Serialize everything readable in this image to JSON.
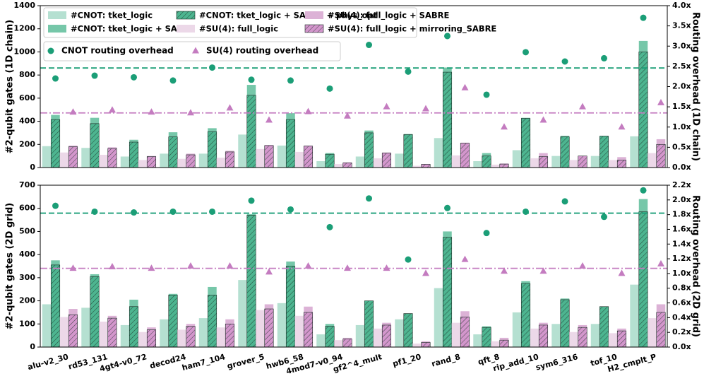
{
  "chart_data": [
    {
      "type": "bar",
      "ylabel": "#2-qubit gates (1D chain)",
      "y2label": "Routing overhead (1D chain)",
      "ylim": [
        0,
        1400
      ],
      "yticks": [
        0,
        200,
        400,
        600,
        800,
        1000,
        1200,
        1400
      ],
      "y2lim": [
        0,
        4
      ],
      "y2ticks": [
        {
          "value": 0,
          "label": "0.0x"
        },
        {
          "value": 0.5,
          "label": "0.5x"
        },
        {
          "value": 1,
          "label": "1.0x"
        },
        {
          "value": 1.5,
          "label": "1.5x"
        },
        {
          "value": 2,
          "label": "2.0x"
        },
        {
          "value": 2.5,
          "label": "2.5x"
        },
        {
          "value": 3,
          "label": "3.0x"
        },
        {
          "value": 3.5,
          "label": "3.5x"
        },
        {
          "value": 4,
          "label": "4.0x"
        }
      ],
      "legend": "upper left",
      "series": [
        {
          "name": "#CNOT: tket_logic",
          "color": "#b5e0d1",
          "values": [
            185,
            170,
            95,
            120,
            120,
            285,
            190,
            55,
            95,
            120,
            255,
            55,
            150,
            100,
            100,
            270
          ]
        },
        {
          "name": "#CNOT: tket_logic + SABRE",
          "color": "#76c7a9",
          "values": [
            455,
            430,
            240,
            305,
            340,
            715,
            470,
            125,
            320,
            290,
            865,
            125,
            430,
            275,
            275,
            1095
          ]
        },
        {
          "name": "#CNOT: tket_logic + SABRE + phys_opt",
          "color": "#4db590",
          "hatch": true,
          "values": [
            415,
            380,
            220,
            265,
            310,
            625,
            415,
            115,
            300,
            285,
            825,
            100,
            425,
            265,
            270,
            1000
          ]
        },
        {
          "name": "#SU(4): full_logic",
          "color": "#ecd8e8",
          "values": [
            130,
            110,
            65,
            75,
            85,
            160,
            135,
            30,
            80,
            15,
            105,
            25,
            80,
            65,
            65,
            125
          ]
        },
        {
          "name": "#SU(4): full_logic + SABRE",
          "color": "#dcb2d6",
          "values": [
            190,
            175,
            100,
            120,
            145,
            195,
            190,
            45,
            130,
            30,
            215,
            35,
            125,
            100,
            90,
            245
          ]
        },
        {
          "name": "#SU(4): full_logic + mirroring_SABRE",
          "color": "#d396cc",
          "hatch": true,
          "values": [
            180,
            165,
            95,
            110,
            135,
            190,
            185,
            40,
            125,
            28,
            210,
            30,
            95,
            100,
            65,
            200
          ]
        },
        {
          "type": "scatter",
          "axis": "y2",
          "marker": "circle",
          "name": "CNOT routing overhead",
          "color": "#1b9e77",
          "values": [
            2.2,
            2.27,
            2.23,
            2.15,
            2.47,
            2.17,
            2.15,
            1.95,
            3.03,
            2.37,
            3.25,
            1.8,
            2.85,
            2.62,
            2.7,
            3.7
          ]
        },
        {
          "type": "scatter",
          "axis": "y2",
          "marker": "triangle",
          "name": "SU(4) routing overhead",
          "color": "#c47cc0",
          "values": [
            1.37,
            1.42,
            1.37,
            1.35,
            1.47,
            1.17,
            1.38,
            1.27,
            1.5,
            1.45,
            1.97,
            1.0,
            1.17,
            1.5,
            1.0,
            1.6
          ]
        }
      ],
      "reference_lines": [
        {
          "value": 2.46,
          "color": "#1b9e77",
          "style": "dashed"
        },
        {
          "value": 1.35,
          "color": "#c47cc0",
          "style": "dashdot"
        }
      ]
    },
    {
      "type": "bar",
      "ylabel": "#2-qubit gates (2D grid)",
      "y2label": "Routing overhead (2D grid)",
      "categories": [
        "alu-v2_30",
        "rd53_131",
        "4gt4-v0_72",
        "decod24",
        "ham7_104",
        "grover_5",
        "hwb6_58",
        "4mod7-v0_94",
        "gf2^4_mult",
        "pf1_20",
        "rand_8",
        "qft_8",
        "rip_add_10",
        "sym6_316",
        "tof_10",
        "H2_cmplt_P"
      ],
      "ylim": [
        0,
        700
      ],
      "yticks": [
        0,
        100,
        200,
        300,
        400,
        500,
        600,
        700
      ],
      "y2lim": [
        0,
        2.2
      ],
      "y2ticks": [
        {
          "value": 0,
          "label": "0.0x"
        },
        {
          "value": 0.2,
          "label": "0.2x"
        },
        {
          "value": 0.4,
          "label": "0.4x"
        },
        {
          "value": 0.6,
          "label": "0.6x"
        },
        {
          "value": 0.8,
          "label": "0.8x"
        },
        {
          "value": 1,
          "label": "1.0x"
        },
        {
          "value": 1.2,
          "label": "1.2x"
        },
        {
          "value": 1.4,
          "label": "1.4x"
        },
        {
          "value": 1.6,
          "label": "1.6x"
        },
        {
          "value": 1.8,
          "label": "1.8x"
        },
        {
          "value": 2,
          "label": "2.0x"
        },
        {
          "value": 2.2,
          "label": "2.2x"
        }
      ],
      "series": [
        {
          "color": "#b5e0d1",
          "values": [
            185,
            170,
            95,
            120,
            125,
            290,
            190,
            55,
            95,
            120,
            255,
            55,
            150,
            100,
            100,
            270
          ]
        },
        {
          "color": "#76c7a9",
          "values": [
            375,
            315,
            205,
            230,
            260,
            575,
            370,
            100,
            200,
            145,
            500,
            90,
            285,
            210,
            175,
            640
          ]
        },
        {
          "color": "#4db590",
          "hatch": true,
          "values": [
            355,
            305,
            175,
            225,
            225,
            570,
            350,
            90,
            200,
            145,
            475,
            85,
            275,
            205,
            175,
            585
          ]
        },
        {
          "color": "#ecd8e8",
          "values": [
            130,
            110,
            65,
            75,
            85,
            160,
            135,
            30,
            80,
            15,
            105,
            25,
            80,
            65,
            60,
            125
          ]
        },
        {
          "color": "#dcb2d6",
          "values": [
            165,
            135,
            85,
            100,
            120,
            185,
            175,
            40,
            105,
            25,
            155,
            40,
            105,
            95,
            80,
            185
          ]
        },
        {
          "color": "#d396cc",
          "hatch": true,
          "values": [
            140,
            125,
            75,
            90,
            100,
            165,
            150,
            35,
            95,
            20,
            130,
            30,
            95,
            85,
            70,
            150
          ]
        },
        {
          "type": "scatter",
          "axis": "y2",
          "marker": "circle",
          "color": "#1b9e77",
          "values": [
            1.92,
            1.84,
            1.83,
            1.84,
            1.84,
            1.99,
            1.87,
            1.63,
            2.02,
            1.19,
            1.89,
            1.55,
            1.84,
            1.98,
            1.77,
            2.13
          ]
        },
        {
          "type": "scatter",
          "axis": "y2",
          "marker": "triangle",
          "color": "#c47cc0",
          "values": [
            1.07,
            1.09,
            1.07,
            1.1,
            1.1,
            1.02,
            1.1,
            1.07,
            1.07,
            1.0,
            1.19,
            1.03,
            1.03,
            1.1,
            1.0,
            1.13
          ]
        }
      ],
      "reference_lines": [
        {
          "value": 1.82,
          "color": "#1b9e77",
          "style": "dashed"
        },
        {
          "value": 1.07,
          "color": "#c47cc0",
          "style": "dashdot"
        }
      ]
    }
  ]
}
